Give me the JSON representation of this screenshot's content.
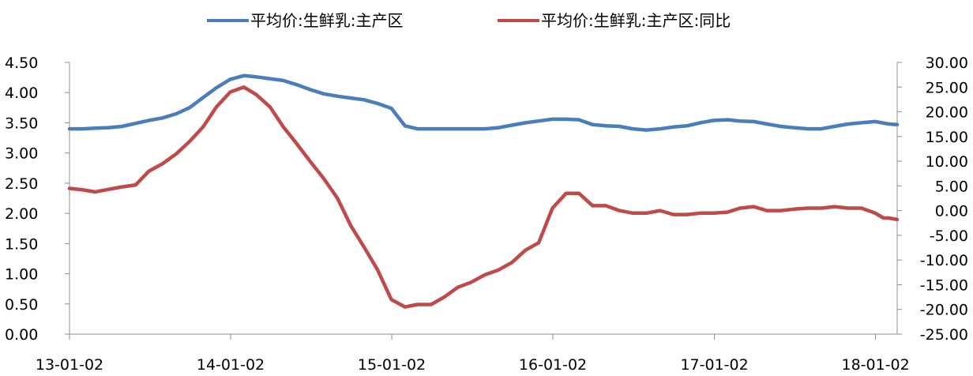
{
  "chart_data": {
    "type": "line",
    "title": "",
    "xlabel": "",
    "ylabel": "",
    "y2label": "",
    "x_ticks": [
      "13-01-02",
      "14-01-02",
      "15-01-02",
      "16-01-02",
      "17-01-02",
      "18-01-02"
    ],
    "x_range": [
      "2013-01-02",
      "2018-02-20"
    ],
    "ylim_left": [
      0,
      4.5
    ],
    "yticks_left": [
      "0.00",
      "0.50",
      "1.00",
      "1.50",
      "2.00",
      "2.50",
      "3.00",
      "3.50",
      "4.00",
      "4.50"
    ],
    "ylim_right": [
      -25,
      30
    ],
    "yticks_right": [
      "-25.00",
      "-20.00",
      "-15.00",
      "-10.00",
      "-5.00",
      "0.00",
      "5.00",
      "10.00",
      "15.00",
      "20.00",
      "25.00",
      "30.00"
    ],
    "grid": false,
    "legend_position": "top-center",
    "series": [
      {
        "name": "平均价:生鲜乳:主产区",
        "axis": "left",
        "color": "#4a7ebb",
        "points": [
          [
            "2013-01-02",
            3.4
          ],
          [
            "2013-02-01",
            3.4
          ],
          [
            "2013-03-01",
            3.41
          ],
          [
            "2013-04-01",
            3.42
          ],
          [
            "2013-05-01",
            3.44
          ],
          [
            "2013-06-01",
            3.49
          ],
          [
            "2013-07-01",
            3.54
          ],
          [
            "2013-08-01",
            3.58
          ],
          [
            "2013-09-01",
            3.65
          ],
          [
            "2013-10-01",
            3.75
          ],
          [
            "2013-11-01",
            3.92
          ],
          [
            "2013-12-01",
            4.08
          ],
          [
            "2014-01-01",
            4.22
          ],
          [
            "2014-02-01",
            4.28
          ],
          [
            "2014-03-01",
            4.26
          ],
          [
            "2014-04-01",
            4.23
          ],
          [
            "2014-05-01",
            4.2
          ],
          [
            "2014-06-01",
            4.13
          ],
          [
            "2014-07-01",
            4.05
          ],
          [
            "2014-08-01",
            3.98
          ],
          [
            "2014-09-01",
            3.94
          ],
          [
            "2014-10-01",
            3.91
          ],
          [
            "2014-11-01",
            3.88
          ],
          [
            "2014-12-01",
            3.82
          ],
          [
            "2015-01-01",
            3.74
          ],
          [
            "2015-02-01",
            3.45
          ],
          [
            "2015-03-01",
            3.4
          ],
          [
            "2015-04-01",
            3.4
          ],
          [
            "2015-05-01",
            3.4
          ],
          [
            "2015-06-01",
            3.4
          ],
          [
            "2015-07-01",
            3.4
          ],
          [
            "2015-08-01",
            3.4
          ],
          [
            "2015-09-01",
            3.42
          ],
          [
            "2015-10-01",
            3.46
          ],
          [
            "2015-11-01",
            3.5
          ],
          [
            "2015-12-01",
            3.53
          ],
          [
            "2016-01-01",
            3.56
          ],
          [
            "2016-02-01",
            3.56
          ],
          [
            "2016-03-01",
            3.55
          ],
          [
            "2016-04-01",
            3.47
          ],
          [
            "2016-05-01",
            3.45
          ],
          [
            "2016-06-01",
            3.44
          ],
          [
            "2016-07-01",
            3.4
          ],
          [
            "2016-08-01",
            3.38
          ],
          [
            "2016-09-01",
            3.4
          ],
          [
            "2016-10-01",
            3.43
          ],
          [
            "2016-11-01",
            3.45
          ],
          [
            "2016-12-01",
            3.5
          ],
          [
            "2017-01-01",
            3.54
          ],
          [
            "2017-02-01",
            3.55
          ],
          [
            "2017-03-01",
            3.53
          ],
          [
            "2017-04-01",
            3.52
          ],
          [
            "2017-05-01",
            3.48
          ],
          [
            "2017-06-01",
            3.44
          ],
          [
            "2017-07-01",
            3.42
          ],
          [
            "2017-08-01",
            3.4
          ],
          [
            "2017-09-01",
            3.4
          ],
          [
            "2017-10-01",
            3.44
          ],
          [
            "2017-11-01",
            3.48
          ],
          [
            "2017-12-01",
            3.5
          ],
          [
            "2018-01-01",
            3.52
          ],
          [
            "2018-02-01",
            3.48
          ],
          [
            "2018-02-20",
            3.47
          ]
        ]
      },
      {
        "name": "平均价:生鲜乳:主产区:同比",
        "axis": "right",
        "color": "#be4b48",
        "points": [
          [
            "2013-01-02",
            4.5
          ],
          [
            "2013-02-01",
            4.2
          ],
          [
            "2013-03-01",
            3.8
          ],
          [
            "2013-04-01",
            4.3
          ],
          [
            "2013-05-01",
            4.8
          ],
          [
            "2013-06-01",
            5.2
          ],
          [
            "2013-07-01",
            8.0
          ],
          [
            "2013-08-01",
            9.5
          ],
          [
            "2013-09-01",
            11.5
          ],
          [
            "2013-10-01",
            14.0
          ],
          [
            "2013-11-01",
            17.0
          ],
          [
            "2013-12-01",
            21.0
          ],
          [
            "2014-01-01",
            24.0
          ],
          [
            "2014-02-01",
            25.0
          ],
          [
            "2014-03-01",
            23.5
          ],
          [
            "2014-04-01",
            21.0
          ],
          [
            "2014-05-01",
            17.0
          ],
          [
            "2014-06-01",
            13.5
          ],
          [
            "2014-07-01",
            10.0
          ],
          [
            "2014-08-01",
            6.5
          ],
          [
            "2014-09-01",
            2.5
          ],
          [
            "2014-10-01",
            -3.0
          ],
          [
            "2014-11-01",
            -7.5
          ],
          [
            "2014-12-01",
            -12.0
          ],
          [
            "2015-01-01",
            -18.0
          ],
          [
            "2015-02-01",
            -19.5
          ],
          [
            "2015-03-01",
            -19.0
          ],
          [
            "2015-04-01",
            -19.0
          ],
          [
            "2015-05-01",
            -17.5
          ],
          [
            "2015-06-01",
            -15.5
          ],
          [
            "2015-07-01",
            -14.5
          ],
          [
            "2015-08-01",
            -13.0
          ],
          [
            "2015-09-01",
            -12.0
          ],
          [
            "2015-10-01",
            -10.5
          ],
          [
            "2015-11-01",
            -8.0
          ],
          [
            "2015-12-01",
            -6.5
          ],
          [
            "2016-01-01",
            0.5
          ],
          [
            "2016-02-01",
            3.5
          ],
          [
            "2016-03-01",
            3.5
          ],
          [
            "2016-04-01",
            1.0
          ],
          [
            "2016-05-01",
            1.0
          ],
          [
            "2016-06-01",
            0.0
          ],
          [
            "2016-07-01",
            -0.5
          ],
          [
            "2016-08-01",
            -0.5
          ],
          [
            "2016-09-01",
            0.0
          ],
          [
            "2016-10-01",
            -0.8
          ],
          [
            "2016-11-01",
            -0.8
          ],
          [
            "2016-12-01",
            -0.5
          ],
          [
            "2017-01-01",
            -0.5
          ],
          [
            "2017-02-01",
            -0.3
          ],
          [
            "2017-03-01",
            0.5
          ],
          [
            "2017-04-01",
            0.8
          ],
          [
            "2017-05-01",
            0.0
          ],
          [
            "2017-06-01",
            0.0
          ],
          [
            "2017-07-01",
            0.3
          ],
          [
            "2017-08-01",
            0.5
          ],
          [
            "2017-09-01",
            0.5
          ],
          [
            "2017-10-01",
            0.8
          ],
          [
            "2017-11-01",
            0.5
          ],
          [
            "2017-12-01",
            0.5
          ],
          [
            "2018-01-01",
            -0.5
          ],
          [
            "2018-01-20",
            -1.5
          ],
          [
            "2018-02-01",
            -1.5
          ],
          [
            "2018-02-20",
            -1.8
          ]
        ]
      }
    ]
  }
}
